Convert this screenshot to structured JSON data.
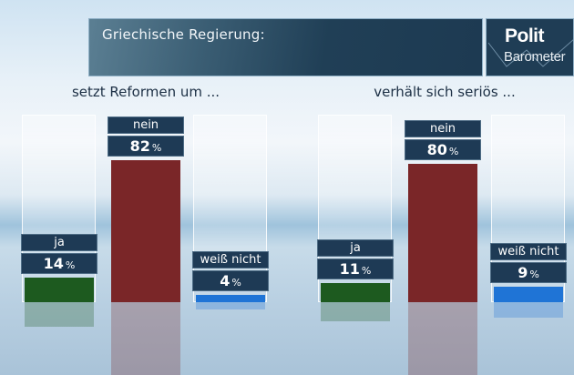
{
  "header": {
    "title": "Griechische Regierung:",
    "logo_line1": "Polit",
    "logo_line2": "Barometer"
  },
  "colors": {
    "ja": "#1d5a1f",
    "nein": "#7a2628",
    "weiss_nicht": "#1f74d6",
    "label_bg": "#1e3a55"
  },
  "chart_data": [
    {
      "type": "bar",
      "title": "setzt Reformen um ...",
      "categories": [
        "ja",
        "nein",
        "weiß nicht"
      ],
      "values": [
        14,
        82,
        4
      ],
      "value_labels": [
        "14",
        "82",
        "4"
      ],
      "unit": "%",
      "ylim": [
        0,
        100
      ],
      "xlabel": "",
      "ylabel": ""
    },
    {
      "type": "bar",
      "title": "verhält sich seriös ...",
      "categories": [
        "ja",
        "nein",
        "weiß nicht"
      ],
      "values": [
        11,
        80,
        9
      ],
      "value_labels": [
        "11",
        "80",
        "9"
      ],
      "unit": "%",
      "ylim": [
        0,
        100
      ],
      "xlabel": "",
      "ylabel": ""
    }
  ]
}
